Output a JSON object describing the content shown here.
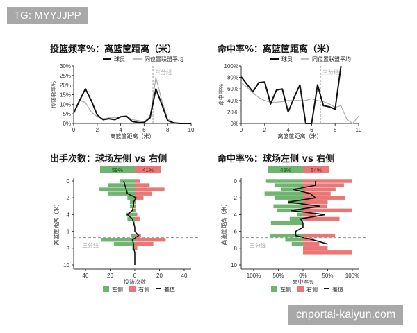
{
  "watermarks": {
    "top": "TG: MYYJJPP",
    "bottom": "cnportal-kaiyun.com"
  },
  "colors": {
    "left": "#6fb56f",
    "right": "#ea7676",
    "player": "#111111",
    "league": "#aaaaaa",
    "threept": "#999999"
  },
  "chart_data": [
    {
      "type": "line",
      "title": "投篮频率%：离篮筐距离（米）",
      "xlabel": "离篮筐距离（米）",
      "ylabel": "投篮频率%",
      "xlim": [
        0,
        10
      ],
      "ylim": [
        0,
        30
      ],
      "xticks": [
        "0",
        "2",
        "4",
        "6",
        "8",
        "10"
      ],
      "yticks": [
        "0%",
        "5%",
        "10%",
        "15%",
        "20%",
        "25%",
        "30%"
      ],
      "annotation": "三分线",
      "three_point_x": 6.75,
      "legend": [
        "球员",
        "同位置联盟平均"
      ],
      "x": [
        0,
        0.5,
        1,
        1.5,
        2,
        2.5,
        3,
        3.5,
        4,
        4.5,
        5,
        5.5,
        6,
        6.5,
        7,
        7.5,
        8,
        8.5,
        9,
        9.5,
        10
      ],
      "series": [
        {
          "name": "球员",
          "values": [
            5.5,
            12,
            18,
            12,
            4.5,
            2,
            2.5,
            2,
            3.5,
            3.8,
            1,
            0.5,
            0.5,
            3,
            18,
            10,
            1.5,
            0.3,
            0,
            0,
            0
          ]
        },
        {
          "name": "同位置联盟平均",
          "values": [
            5.5,
            12,
            11,
            6,
            3.5,
            2.5,
            3,
            3,
            3.5,
            3.8,
            2,
            1.5,
            1,
            3.5,
            24,
            12,
            2.5,
            0.5,
            0.2,
            0,
            0
          ]
        }
      ]
    },
    {
      "type": "line",
      "title": "命中率%：离篮筐距离（米）",
      "xlabel": "离篮筐距离（米）",
      "ylabel": "命中率%",
      "xlim": [
        0,
        10
      ],
      "ylim": [
        0,
        100
      ],
      "xticks": [
        "0",
        "2",
        "4",
        "6",
        "8",
        "10"
      ],
      "yticks": [
        "0%",
        "20%",
        "40%",
        "60%",
        "80%",
        "100%"
      ],
      "annotation": "三分线",
      "three_point_x": 6.75,
      "legend": [
        "球员",
        "同位置联盟平均"
      ],
      "x": [
        0,
        0.5,
        1,
        1.5,
        2,
        2.5,
        3,
        3.5,
        4,
        4.5,
        5,
        5.5,
        6,
        6.5,
        7,
        7.5,
        8,
        8.5,
        9,
        9.5,
        10
      ],
      "series": [
        {
          "name": "球员",
          "values": [
            81,
            68,
            55,
            71,
            72,
            34,
            58,
            60,
            20,
            45,
            67,
            0,
            0,
            67,
            31,
            29,
            25,
            100,
            null,
            null,
            null
          ]
        },
        {
          "name": "同位置联盟平均",
          "values": [
            71,
            63,
            53,
            45,
            40,
            37,
            37,
            38,
            40,
            40,
            40,
            40,
            43,
            40,
            38,
            34,
            28,
            31,
            7,
            0,
            13
          ]
        }
      ]
    },
    {
      "type": "bar",
      "orientation": "horizontal-diverging",
      "title": "出手次数：球场左侧 vs 右侧",
      "xlabel": "投篮次数",
      "ylabel": "离篮筐距离（米）",
      "xticks": [
        "40",
        "20",
        "0",
        "20",
        "40"
      ],
      "yticks": [
        "0",
        "2",
        "4",
        "6",
        "8",
        "10"
      ],
      "annotation": "三分线",
      "three_point_x": 6.75,
      "summary": {
        "left": "59%",
        "right": "41%"
      },
      "legend": [
        "左侧",
        "右侧",
        "差值"
      ],
      "distances": [
        0,
        0.5,
        1,
        1.5,
        2,
        2.5,
        3,
        3.5,
        4,
        4.5,
        5,
        5.5,
        6,
        6.5,
        7,
        7.5,
        8,
        8.5,
        9,
        9.5,
        10
      ],
      "series": [
        {
          "name": "左侧",
          "values": [
            12,
            22,
            29,
            22,
            6,
            4,
            4,
            2,
            7,
            6,
            1,
            0,
            0,
            3,
            27,
            17,
            2,
            0,
            0,
            0,
            0
          ]
        },
        {
          "name": "右侧",
          "values": [
            4,
            12,
            24,
            14,
            7,
            1,
            1,
            1,
            2,
            4,
            0,
            0,
            0,
            5,
            25,
            15,
            2,
            0,
            0,
            0,
            0
          ]
        },
        {
          "name": "差值",
          "values": [
            -9,
            -8,
            -7,
            -6,
            1,
            -1,
            -1,
            -2,
            -6,
            -2,
            -1,
            0,
            0,
            3,
            -2,
            -1,
            -1,
            0,
            0,
            0,
            0
          ]
        }
      ]
    },
    {
      "type": "bar",
      "orientation": "horizontal-diverging",
      "title": "命中率%：球场左侧 vs 右侧",
      "xlabel": "命中率%",
      "ylabel": "离篮筐距离（米）",
      "xticks": [
        "100%",
        "50%",
        "0%",
        "50%",
        "100%"
      ],
      "yticks": [
        "0",
        "2",
        "4",
        "6",
        "8",
        "10"
      ],
      "annotation": "三分线",
      "three_point_x": 6.75,
      "summary": {
        "left": "49%",
        "right": "54%"
      },
      "legend": [
        "左侧",
        "右侧",
        "差值"
      ],
      "distances": [
        0,
        0.5,
        1,
        1.5,
        2,
        2.5,
        3,
        3.5,
        4,
        4.5,
        5,
        5.5,
        6,
        6.5,
        7,
        7.5,
        8,
        8.5,
        9,
        9.5,
        10
      ],
      "series": [
        {
          "name": "左侧",
          "values": [
            75,
            58,
            45,
            78,
            58,
            30,
            60,
            52,
            12,
            27,
            65,
            0,
            0,
            66,
            36,
            23,
            0,
            0,
            null,
            null,
            null
          ]
        },
        {
          "name": "右侧",
          "values": [
            100,
            83,
            66,
            56,
            86,
            50,
            48,
            100,
            26,
            74,
            0,
            0,
            0,
            65,
            22,
            33,
            50,
            100,
            null,
            null,
            null
          ]
        },
        {
          "name": "差值",
          "values": [
            25,
            25,
            -20,
            15,
            25,
            -30,
            35,
            -25,
            45,
            -5,
            0,
            0,
            -15,
            -15,
            20,
            50,
            null,
            null,
            null,
            null,
            null
          ]
        }
      ]
    }
  ]
}
